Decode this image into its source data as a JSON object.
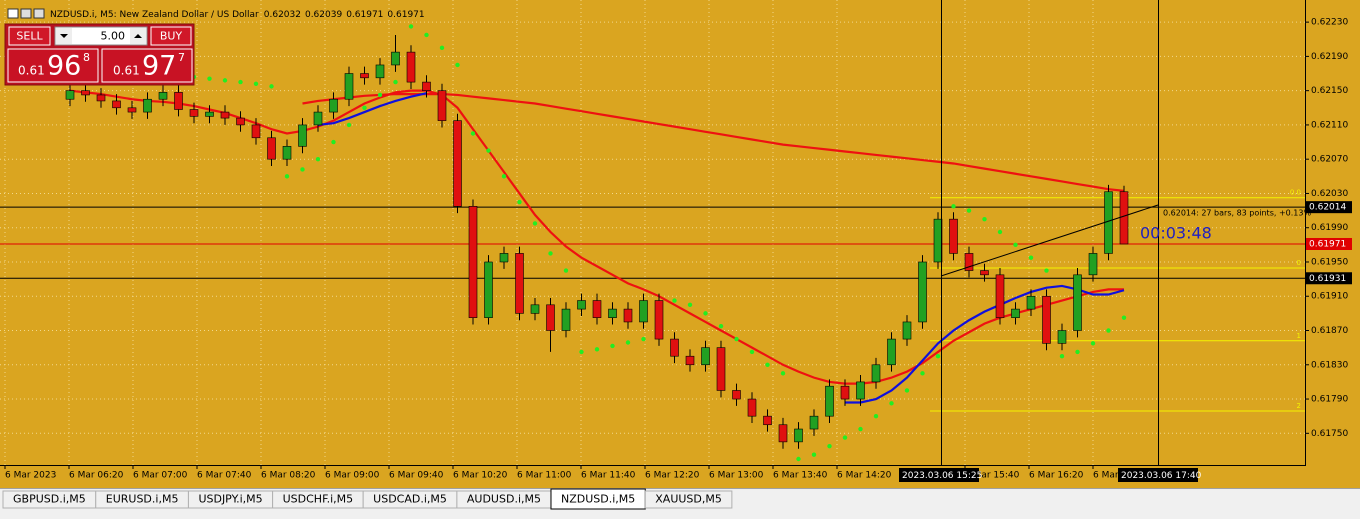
{
  "window": {
    "title": "NZDUSD.i, M5:  New Zealand Dollar / US Dollar",
    "trade_panel": {
      "sell": "SELL",
      "buy": "BUY",
      "volume": "5.00",
      "bid": {
        "prefix": "0.61",
        "big": "96",
        "small": "8"
      },
      "ask": {
        "prefix": "0.61",
        "big": "97",
        "small": "7"
      }
    },
    "crosshair_labels": [
      "2023.03.06 15:25",
      "2023.03.06 17:40"
    ],
    "measure_note": "0.62014: 27 bars, 83 points, +0.13%",
    "countdown": "00:03:48",
    "tabs": [
      "GBPUSD.i,M5",
      "EURUSD.i,M5",
      "USDJPY.i,M5",
      "USDCHF.i,M5",
      "USDCAD.i,M5",
      "AUDUSD.i,M5",
      "NZDUSD.i,M5",
      "XAUUSD,M5"
    ],
    "active_tab": 6
  },
  "chart_data": {
    "type": "candlestick",
    "up_color": "#22a022",
    "down_color": "#e01010",
    "ylim": [
      0.61713,
      0.6225
    ],
    "yticks": [
      {
        "value": 0.6223,
        "label": "0.62230"
      },
      {
        "value": 0.6219,
        "label": "0.62190"
      },
      {
        "value": 0.6215,
        "label": "0.62150"
      },
      {
        "value": 0.6211,
        "label": "0.62110"
      },
      {
        "value": 0.6207,
        "label": "0.62070"
      },
      {
        "value": 0.6203,
        "label": "0.62030"
      },
      {
        "value": 0.6199,
        "label": "0.61990"
      },
      {
        "value": 0.6195,
        "label": "0.61950"
      },
      {
        "value": 0.6191,
        "label": "0.61910"
      },
      {
        "value": 0.6187,
        "label": "0.61870"
      },
      {
        "value": 0.6183,
        "label": "0.61830"
      },
      {
        "value": 0.6179,
        "label": "0.61790"
      },
      {
        "value": 0.6175,
        "label": "0.61750"
      }
    ],
    "x_labels": [
      "6 Mar 2023",
      "6 Mar 06:20",
      "6 Mar 07:00",
      "6 Mar 07:40",
      "6 Mar 08:20",
      "6 Mar 09:00",
      "6 Mar 09:40",
      "6 Mar 10:20",
      "6 Mar 11:00",
      "6 Mar 11:40",
      "6 Mar 12:20",
      "6 Mar 13:00",
      "6 Mar 13:40",
      "6 Mar 14:20",
      null,
      "6 Mar 15:40",
      "6 Mar 16:20",
      "6 Mar"
    ],
    "grid": true,
    "open": [
      0.6214,
      0.6215,
      0.62145,
      0.62138,
      0.6213,
      0.62125,
      0.6214,
      0.62148,
      0.62128,
      0.6212,
      0.62125,
      0.62118,
      0.6211,
      0.62095,
      0.6207,
      0.62085,
      0.6211,
      0.62125,
      0.6214,
      0.6217,
      0.62165,
      0.6218,
      0.62195,
      0.6216,
      0.6215,
      0.62115,
      0.62015,
      0.61885,
      0.6195,
      0.6196,
      0.6189,
      0.619,
      0.6187,
      0.61895,
      0.61905,
      0.61885,
      0.61895,
      0.6188,
      0.61905,
      0.6186,
      0.6184,
      0.6183,
      0.6185,
      0.618,
      0.6179,
      0.6177,
      0.6176,
      0.6174,
      0.61755,
      0.6177,
      0.61805,
      0.6179,
      0.6181,
      0.6183,
      0.6186,
      0.6188,
      0.6195,
      0.62,
      0.6196,
      0.6194,
      0.61935,
      0.61885,
      0.61895,
      0.6191,
      0.61855,
      0.6187,
      0.61935,
      0.6196,
      0.62032
    ],
    "high": [
      0.62158,
      0.62158,
      0.62153,
      0.62146,
      0.62138,
      0.62148,
      0.62156,
      0.62156,
      0.62136,
      0.62133,
      0.62133,
      0.62126,
      0.62118,
      0.62103,
      0.62093,
      0.62118,
      0.62133,
      0.62148,
      0.62178,
      0.62178,
      0.62188,
      0.62215,
      0.62203,
      0.62168,
      0.62158,
      0.62123,
      0.62023,
      0.61958,
      0.61968,
      0.61968,
      0.61908,
      0.61908,
      0.61903,
      0.61913,
      0.61913,
      0.61903,
      0.61903,
      0.61913,
      0.61913,
      0.61868,
      0.61848,
      0.61858,
      0.61858,
      0.61808,
      0.61798,
      0.61778,
      0.61768,
      0.61763,
      0.61778,
      0.61813,
      0.61813,
      0.61818,
      0.61838,
      0.61868,
      0.61888,
      0.61958,
      0.62008,
      0.62008,
      0.61968,
      0.61948,
      0.61943,
      0.61903,
      0.61918,
      0.61918,
      0.61878,
      0.61943,
      0.61968,
      0.6204,
      0.62039
    ],
    "low": [
      0.62132,
      0.62137,
      0.6213,
      0.62122,
      0.62117,
      0.62117,
      0.62132,
      0.6212,
      0.62112,
      0.62112,
      0.6211,
      0.62102,
      0.62087,
      0.62062,
      0.62062,
      0.62077,
      0.62102,
      0.62117,
      0.62132,
      0.62157,
      0.62157,
      0.62172,
      0.62152,
      0.62142,
      0.62107,
      0.62007,
      0.61877,
      0.61877,
      0.61942,
      0.61882,
      0.61882,
      0.61845,
      0.61862,
      0.61887,
      0.61877,
      0.61877,
      0.61872,
      0.61872,
      0.61852,
      0.61832,
      0.61822,
      0.61822,
      0.61792,
      0.61782,
      0.61762,
      0.61752,
      0.61732,
      0.61732,
      0.61747,
      0.61762,
      0.61782,
      0.61782,
      0.61802,
      0.61822,
      0.61852,
      0.61872,
      0.61942,
      0.61952,
      0.61932,
      0.61927,
      0.61877,
      0.61877,
      0.61887,
      0.61847,
      0.61847,
      0.61862,
      0.61927,
      0.61952,
      0.61971
    ],
    "close": [
      0.6215,
      0.62145,
      0.62138,
      0.6213,
      0.62125,
      0.6214,
      0.62148,
      0.62128,
      0.6212,
      0.62125,
      0.62118,
      0.6211,
      0.62095,
      0.6207,
      0.62085,
      0.6211,
      0.62125,
      0.6214,
      0.6217,
      0.62165,
      0.6218,
      0.62195,
      0.6216,
      0.6215,
      0.62115,
      0.62015,
      0.61885,
      0.6195,
      0.6196,
      0.6189,
      0.619,
      0.6187,
      0.61895,
      0.61905,
      0.61885,
      0.61895,
      0.6188,
      0.61905,
      0.6186,
      0.6184,
      0.6183,
      0.6185,
      0.618,
      0.6179,
      0.6177,
      0.6176,
      0.6174,
      0.61755,
      0.6177,
      0.61805,
      0.6179,
      0.6181,
      0.6183,
      0.6186,
      0.6188,
      0.6195,
      0.62,
      0.6196,
      0.6194,
      0.61935,
      0.61885,
      0.61895,
      0.6191,
      0.61855,
      0.6187,
      0.61935,
      0.6196,
      0.62032,
      0.61971
    ],
    "lines": [
      {
        "color": "#ee1111",
        "width": 2.2,
        "values": [
          0.6215,
          0.62148,
          0.62146,
          0.62143,
          0.6214,
          0.62138,
          0.62137,
          0.62135,
          0.62132,
          0.62128,
          0.62124,
          0.62118,
          0.62112,
          0.62105,
          0.621,
          0.62103,
          0.62108,
          0.62115,
          0.62125,
          0.62135,
          0.62142,
          0.62148,
          0.6215,
          0.6215,
          0.62145,
          0.6213,
          0.62105,
          0.6208,
          0.62055,
          0.6203,
          0.62005,
          0.61985,
          0.61968,
          0.61955,
          0.61945,
          0.61935,
          0.61925,
          0.61918,
          0.6191,
          0.619,
          0.6189,
          0.6188,
          0.6187,
          0.6186,
          0.6185,
          0.6184,
          0.6183,
          0.61822,
          0.61815,
          0.6181,
          0.61808,
          0.61808,
          0.6181,
          0.61815,
          0.61822,
          0.61832,
          0.61845,
          0.61858,
          0.61868,
          0.61878,
          0.61885,
          0.6189,
          0.61895,
          0.619,
          0.61905,
          0.6191,
          0.61915,
          0.61918,
          0.61918
        ]
      },
      {
        "color": "#ee1111",
        "width": 2.2,
        "values": [
          null,
          null,
          null,
          null,
          null,
          null,
          null,
          null,
          null,
          null,
          null,
          null,
          null,
          null,
          null,
          0.62135,
          0.62138,
          0.6214,
          0.62142,
          0.62144,
          0.62145,
          0.62146,
          0.62146,
          0.62146,
          0.62146,
          0.62145,
          0.62143,
          0.62141,
          0.62139,
          0.62137,
          0.62135,
          0.62132,
          0.62129,
          0.62126,
          0.62123,
          0.6212,
          0.62117,
          0.62114,
          0.62111,
          0.62108,
          0.62105,
          0.62102,
          0.62099,
          0.62096,
          0.62093,
          0.6209,
          0.62087,
          0.62085,
          0.62083,
          0.62081,
          0.62079,
          0.62077,
          0.62075,
          0.62073,
          0.62071,
          0.62069,
          0.62067,
          0.62065,
          0.62062,
          0.62059,
          0.62056,
          0.62053,
          0.6205,
          0.62047,
          0.62044,
          0.62041,
          0.62038,
          0.62035,
          0.62033
        ]
      },
      {
        "color": "#1010dd",
        "width": 2.2,
        "values": [
          null,
          null,
          null,
          null,
          null,
          null,
          null,
          null,
          null,
          null,
          null,
          null,
          null,
          null,
          null,
          null,
          0.6211,
          0.62112,
          0.62118,
          0.62125,
          0.62132,
          0.62138,
          0.62143,
          0.62147,
          null,
          null,
          null,
          null,
          null,
          null,
          null,
          null,
          null,
          null,
          null,
          null,
          null,
          null,
          null,
          null,
          null,
          null,
          null,
          null,
          null,
          null,
          null,
          null,
          null,
          null,
          0.61786,
          0.61786,
          0.6179,
          0.618,
          0.61815,
          0.61835,
          0.61855,
          0.6187,
          0.61882,
          0.61892,
          0.619,
          0.61908,
          0.61915,
          0.6192,
          0.61922,
          0.61918,
          0.61912,
          0.61912,
          0.61917
        ]
      }
    ],
    "sar": {
      "color": "#22ee22",
      "values": [
        null,
        null,
        null,
        null,
        null,
        null,
        0.6217,
        0.62168,
        0.62166,
        0.62164,
        0.62162,
        0.6216,
        0.62158,
        0.62155,
        0.6205,
        0.62058,
        0.6207,
        0.6209,
        0.6211,
        0.6213,
        0.62145,
        0.6216,
        0.62225,
        0.62215,
        0.622,
        0.6218,
        0.621,
        0.6208,
        0.6205,
        0.6202,
        0.61995,
        0.6196,
        0.6194,
        0.61845,
        0.61848,
        0.61852,
        0.61856,
        0.6186,
        0.61864,
        0.61905,
        0.619,
        0.6189,
        0.61875,
        0.6186,
        0.61845,
        0.6183,
        0.6182,
        0.6172,
        0.61725,
        0.61735,
        0.61745,
        0.61755,
        0.6177,
        0.61785,
        0.618,
        0.6182,
        0.6184,
        0.62015,
        0.6201,
        0.62,
        0.61985,
        0.6197,
        0.61955,
        0.6194,
        0.6184,
        0.61845,
        0.61855,
        0.6187,
        0.61885
      ]
    },
    "price_lines": [
      {
        "value": 0.62014,
        "color": "#000000"
      },
      {
        "value": 0.61971,
        "color": "#e00000"
      },
      {
        "value": 0.61931,
        "color": "#000000"
      }
    ],
    "fib_levels": [
      {
        "value": 0.62025,
        "label": "0.0"
      },
      {
        "value": 0.61943,
        "label": "0"
      },
      {
        "value": 0.61858,
        "label": "1"
      },
      {
        "value": 0.61776,
        "label": "2"
      }
    ],
    "fib_color": "#f4f400"
  }
}
